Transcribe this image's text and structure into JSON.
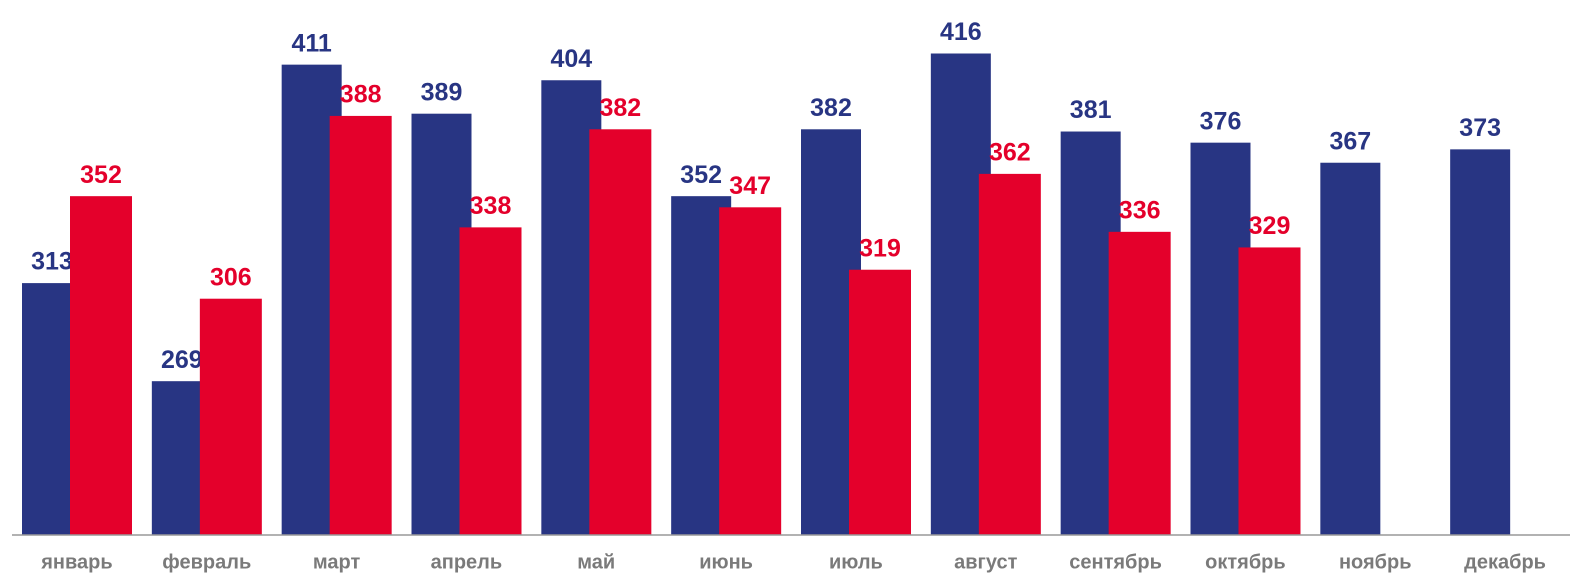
{
  "chart_data": {
    "type": "bar",
    "categories": [
      "январь",
      "февраль",
      "март",
      "апрель",
      "май",
      "июнь",
      "июль",
      "август",
      "сентябрь",
      "октябрь",
      "ноябрь",
      "декабрь"
    ],
    "series": [
      {
        "color": "#283583",
        "values": [
          313,
          269,
          411,
          389,
          404,
          352,
          382,
          416,
          381,
          376,
          367,
          373
        ]
      },
      {
        "color": "#e4002b",
        "values": [
          352,
          306,
          388,
          338,
          382,
          347,
          319,
          362,
          336,
          329,
          null,
          null
        ]
      }
    ],
    "ylim": [
      200,
      440
    ]
  }
}
